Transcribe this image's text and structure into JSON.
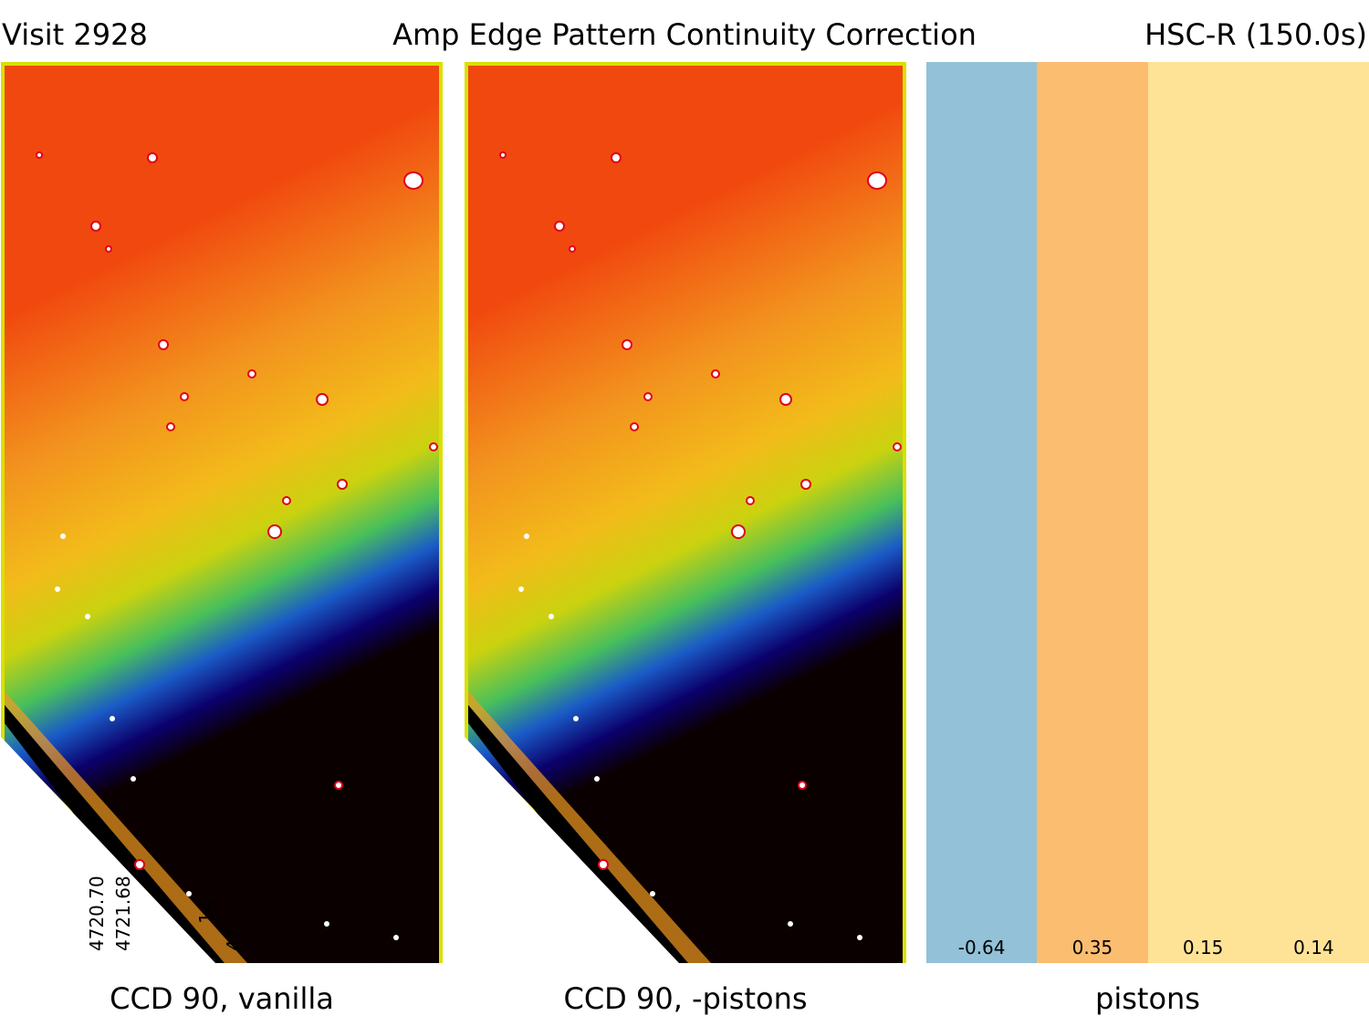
{
  "header": {
    "visit": "Visit 2928",
    "title": "Amp Edge Pattern Continuity Correction",
    "filter": "HSC-R (150.0s)"
  },
  "panels": [
    {
      "caption": "CCD 90, vanilla",
      "edge_labels": [
        "4720.70",
        "4721.68",
        "14",
        "47"
      ]
    },
    {
      "caption": "CCD 90, -pistons"
    }
  ],
  "pistons": {
    "caption": "pistons",
    "amps": [
      {
        "value": "-0.64",
        "color": "#92c1d8"
      },
      {
        "value": "0.35",
        "color": "#fbbd70"
      },
      {
        "value": "0.15",
        "color": "#fee397"
      },
      {
        "value": "0.14",
        "color": "#fee397"
      }
    ]
  },
  "colors": {
    "frame": "#dbe000",
    "gradient": [
      "#f04010",
      "#f6a020",
      "#f3d41a",
      "#9ae010",
      "#10c080",
      "#0040d0",
      "#000060",
      "#000000"
    ]
  }
}
